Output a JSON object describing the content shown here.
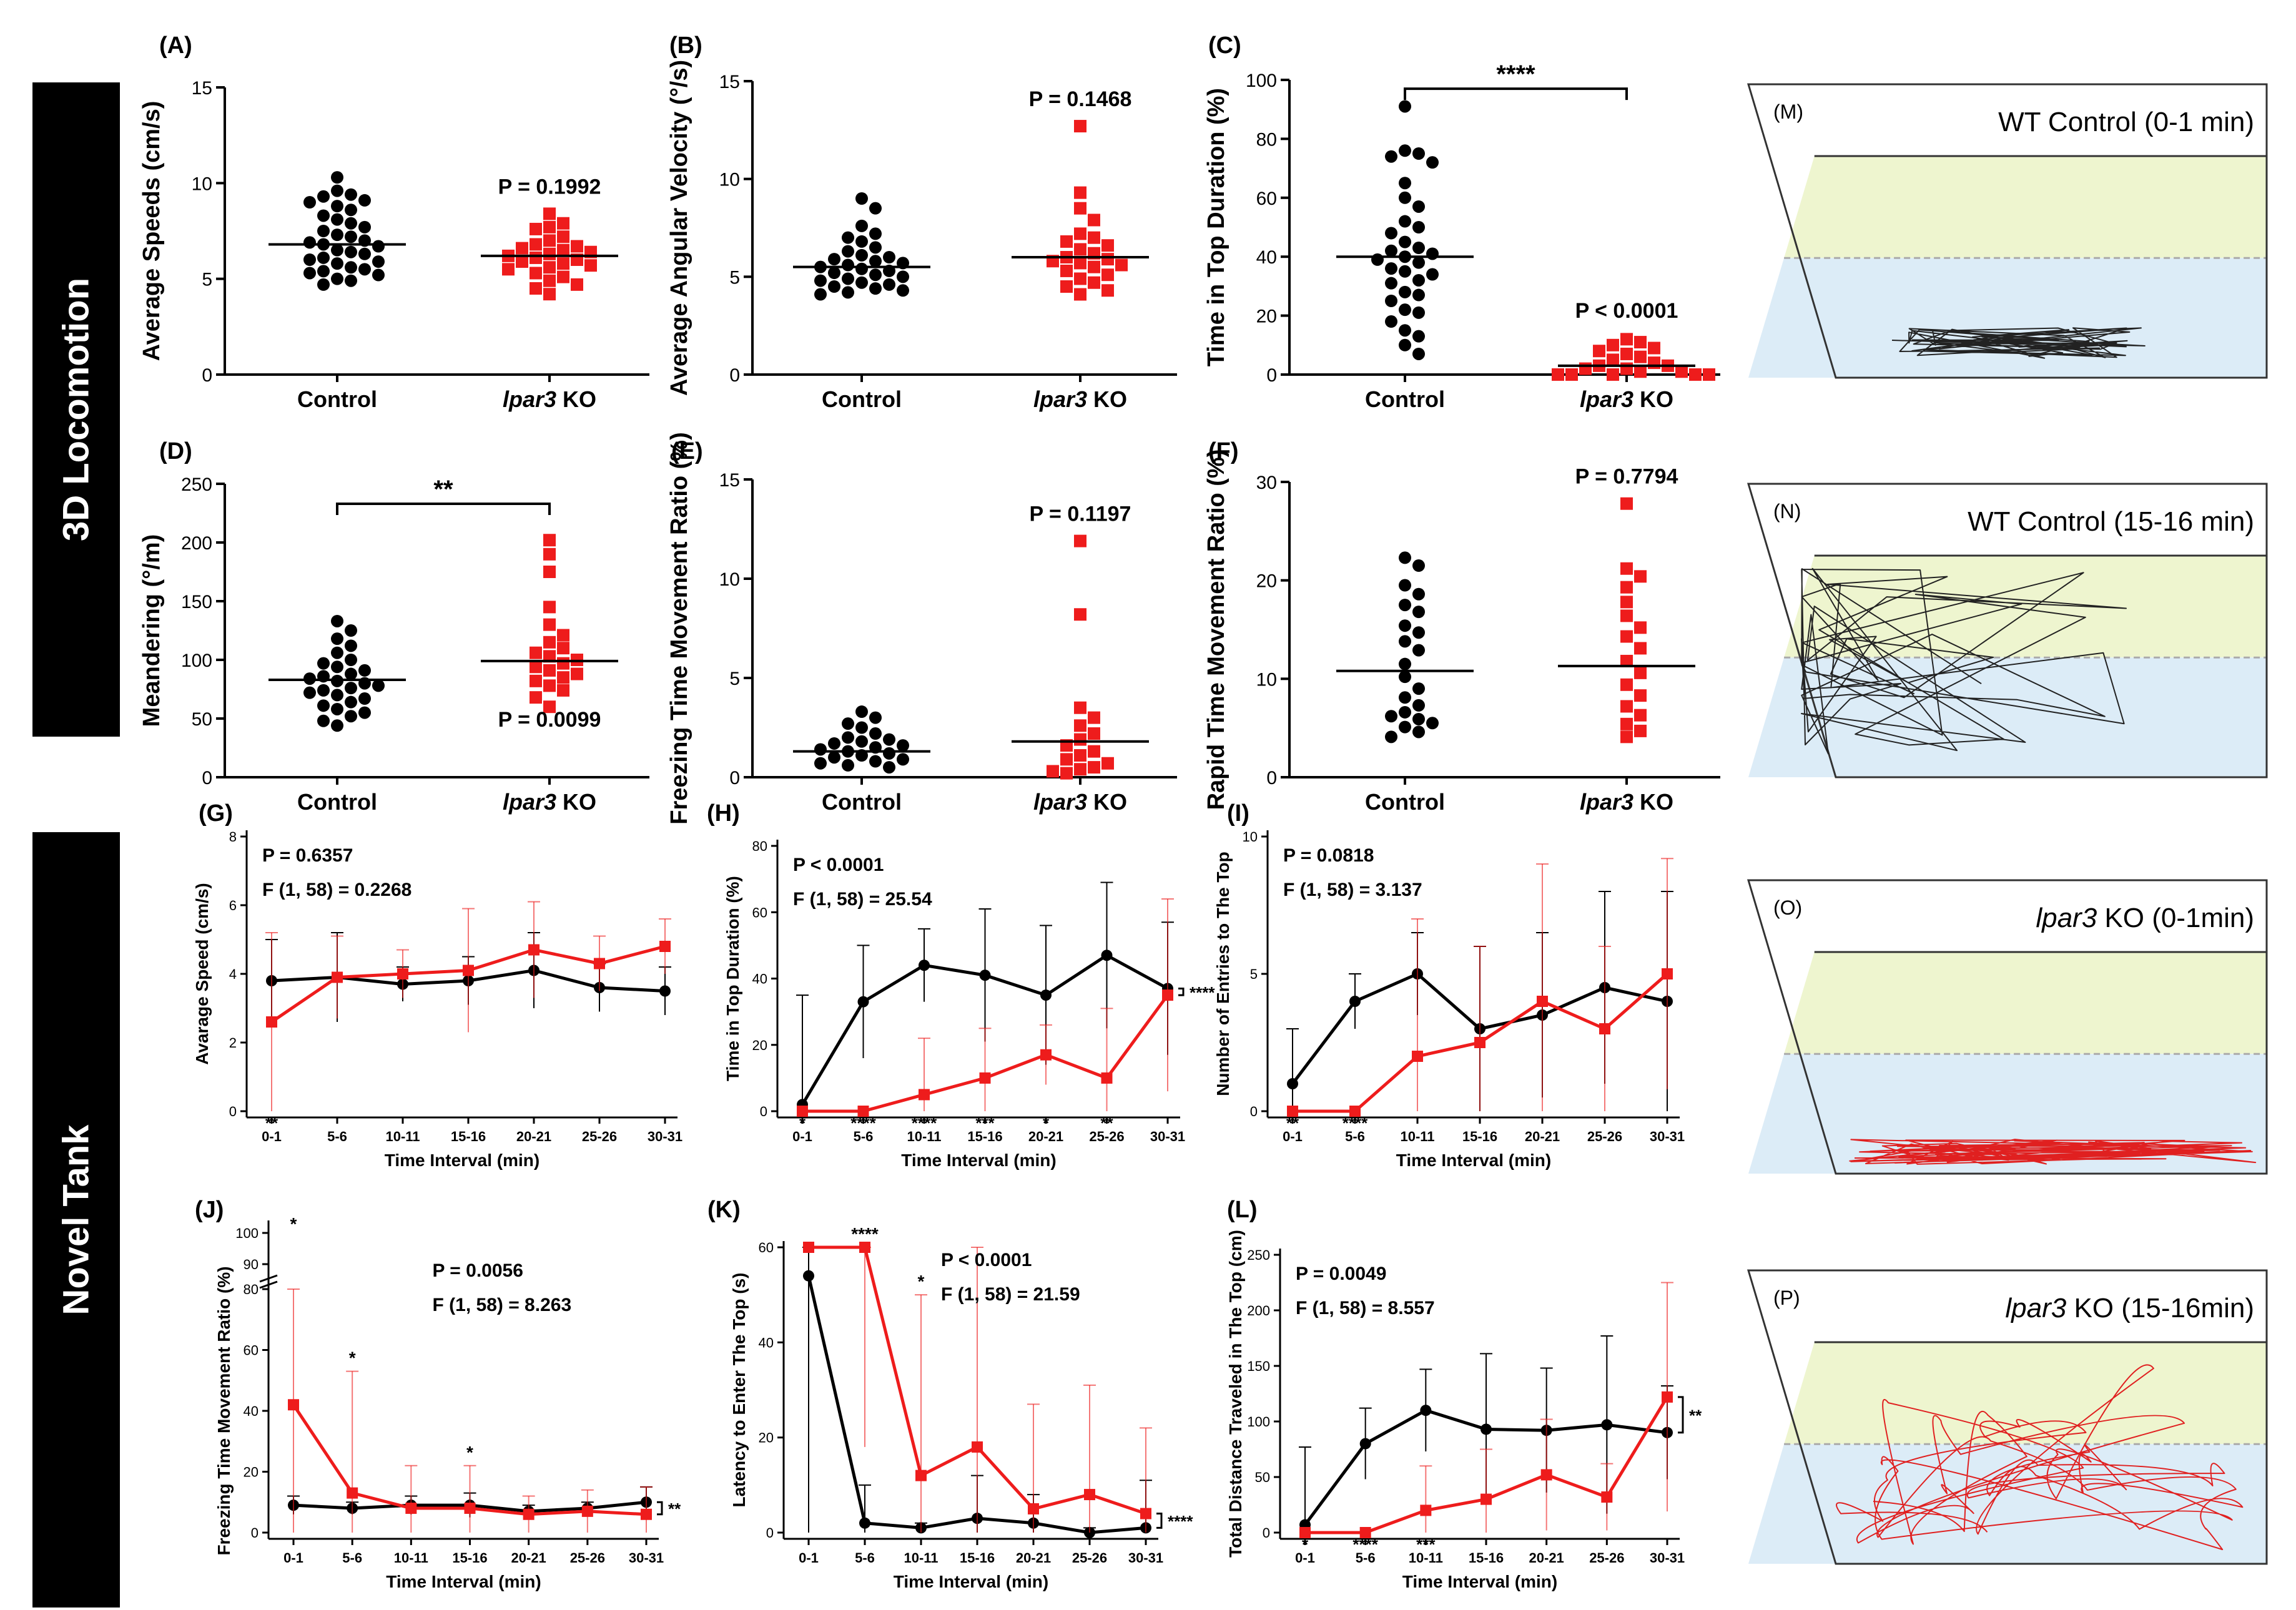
{
  "side_labels": {
    "locomotion": "3D Locomotion",
    "novel_tank": "Novel Tank"
  },
  "colors": {
    "control": "#000000",
    "ko": "#ee1c1c",
    "top_zone": "#eef5cf",
    "bottom_zone": "#dcecf7"
  },
  "chart_data": [
    {
      "id": "A",
      "type": "scatter",
      "panel": "(A)",
      "ylabel": "Average Speeds (cm/s)",
      "ylim": [
        0,
        15
      ],
      "yticks": [
        0,
        5,
        10,
        15
      ],
      "categories": [
        "Control",
        "lpar3 KO"
      ],
      "means": [
        6.8,
        6.2
      ],
      "pval": "P = 0.1992",
      "pval_group": 1,
      "values": [
        [
          10.3,
          9.6,
          9.4,
          9.3,
          9.1,
          9.0,
          8.8,
          8.6,
          8.3,
          8.1,
          7.9,
          7.7,
          7.5,
          7.3,
          7.2,
          7.0,
          6.9,
          6.8,
          6.7,
          6.5,
          6.4,
          6.3,
          6.1,
          6.0,
          5.9,
          5.8,
          5.6,
          5.5,
          5.4,
          5.3,
          5.2,
          5.0,
          4.9,
          4.7
        ],
        [
          8.4,
          7.9,
          7.7,
          7.6,
          7.2,
          7.0,
          6.8,
          6.7,
          6.6,
          6.5,
          6.4,
          6.3,
          6.2,
          6.1,
          6.0,
          5.9,
          5.8,
          5.7,
          5.6,
          5.5,
          5.3,
          5.1,
          4.9,
          4.7,
          4.5,
          4.2
        ]
      ]
    },
    {
      "id": "B",
      "type": "scatter",
      "panel": "(B)",
      "ylabel": "Average Angular Velocity (°/s)",
      "ylim": [
        0,
        15
      ],
      "yticks": [
        0,
        5,
        10,
        15
      ],
      "categories": [
        "Control",
        "lpar3 KO"
      ],
      "means": [
        5.5,
        6.0
      ],
      "pval": "P = 0.1468",
      "pval_group": 1,
      "values": [
        [
          9.0,
          8.5,
          7.6,
          7.2,
          7.0,
          6.8,
          6.5,
          6.3,
          6.1,
          6.0,
          5.9,
          5.8,
          5.7,
          5.6,
          5.5,
          5.4,
          5.3,
          5.2,
          5.1,
          5.0,
          4.9,
          4.8,
          4.7,
          4.6,
          4.5,
          4.4,
          4.3,
          4.2,
          4.1
        ],
        [
          12.7,
          9.3,
          8.5,
          7.9,
          7.2,
          7.0,
          6.8,
          6.6,
          6.4,
          6.2,
          6.0,
          5.9,
          5.8,
          5.7,
          5.6,
          5.5,
          5.3,
          5.1,
          4.9,
          4.7,
          4.5,
          4.3,
          4.1
        ]
      ]
    },
    {
      "id": "C",
      "type": "scatter",
      "panel": "(C)",
      "ylabel": "Time in Top Duration (%)",
      "ylim": [
        0,
        100
      ],
      "yticks": [
        0,
        20,
        40,
        60,
        80,
        100
      ],
      "categories": [
        "Control",
        "lpar3 KO"
      ],
      "means": [
        40,
        3
      ],
      "pval": "P < 0.0001",
      "pval_group": 1,
      "sig": "****",
      "values": [
        [
          91,
          76,
          75,
          74,
          72,
          65,
          60,
          57,
          52,
          50,
          48,
          45,
          43,
          42,
          41,
          40,
          39,
          38,
          36,
          35,
          34,
          32,
          31,
          28,
          27,
          25,
          22,
          21,
          18,
          15,
          13,
          10,
          7
        ],
        [
          12,
          11,
          10,
          9,
          8,
          7,
          6,
          5,
          4,
          3,
          3,
          2,
          2,
          1,
          1,
          0,
          0,
          0,
          0,
          0
        ]
      ]
    },
    {
      "id": "D",
      "type": "scatter",
      "panel": "(D)",
      "ylabel": "Meandering (°/m)",
      "ylim": [
        0,
        250
      ],
      "yticks": [
        0,
        50,
        100,
        150,
        200,
        250
      ],
      "categories": [
        "Control",
        "lpar3 KO"
      ],
      "means": [
        83,
        99
      ],
      "pval": "P = 0.0099",
      "pval_group": 1,
      "pval_pos": "below",
      "sig": "**",
      "values": [
        [
          133,
          125,
          118,
          112,
          106,
          100,
          97,
          94,
          91,
          88,
          86,
          84,
          82,
          80,
          78,
          76,
          74,
          72,
          70,
          67,
          64,
          61,
          58,
          55,
          52,
          48,
          44
        ],
        [
          202,
          190,
          175,
          145,
          130,
          121,
          115,
          110,
          106,
          103,
          100,
          97,
          94,
          91,
          88,
          85,
          82,
          78,
          74,
          68,
          60
        ]
      ]
    },
    {
      "id": "E",
      "type": "scatter",
      "panel": "(E)",
      "ylabel": "Freezing Time Movement Ratio (%)",
      "ylim": [
        0,
        15
      ],
      "yticks": [
        0,
        5,
        10,
        15
      ],
      "categories": [
        "Control",
        "lpar3 KO"
      ],
      "means": [
        1.3,
        1.8
      ],
      "pval": "P = 0.1197",
      "pval_group": 1,
      "values": [
        [
          3.3,
          3.0,
          2.7,
          2.5,
          2.2,
          2.0,
          1.9,
          1.8,
          1.7,
          1.6,
          1.5,
          1.4,
          1.3,
          1.2,
          1.1,
          1.0,
          0.9,
          0.8,
          0.7,
          0.6,
          0.5
        ],
        [
          11.9,
          8.2,
          3.5,
          3.0,
          2.6,
          2.2,
          1.9,
          1.6,
          1.3,
          1.1,
          0.9,
          0.7,
          0.5,
          0.4,
          0.3,
          0.2
        ]
      ]
    },
    {
      "id": "F",
      "type": "scatter",
      "panel": "(F)",
      "ylabel": "Rapid Time Movement Ratio (%)",
      "ylim": [
        0,
        30
      ],
      "yticks": [
        0,
        10,
        20,
        30
      ],
      "categories": [
        "Control",
        "lpar3 KO"
      ],
      "means": [
        10.8,
        11.3
      ],
      "pval": "P = 0.7794",
      "pval_group": 1,
      "values": [
        [
          22.3,
          21.5,
          19.5,
          18.6,
          17.5,
          16.8,
          15.4,
          14.7,
          13.8,
          12.9,
          11.5,
          10.2,
          9.0,
          8.1,
          7.3,
          6.6,
          6.2,
          5.9,
          5.5,
          5.1,
          4.6,
          4.1
        ],
        [
          27.8,
          21.2,
          20.4,
          19.3,
          17.8,
          16.4,
          15.2,
          14.3,
          13.1,
          11.8,
          10.6,
          9.4,
          8.3,
          7.2,
          6.3,
          5.4,
          4.7,
          4.1
        ]
      ]
    },
    {
      "id": "G",
      "type": "line",
      "panel": "(G)",
      "ylabel": "Avarage Speed (cm/s)",
      "xlabel": "Time Interval (min)",
      "ylim": [
        0,
        8
      ],
      "yticks": [
        0,
        2,
        4,
        6,
        8
      ],
      "categories": [
        "0-1",
        "5-6",
        "10-11",
        "15-16",
        "20-21",
        "25-26",
        "30-31"
      ],
      "series": [
        {
          "name": "Control",
          "values": [
            3.8,
            3.9,
            3.7,
            3.8,
            4.1,
            3.6,
            3.5
          ],
          "err": [
            1.2,
            1.3,
            0.5,
            0.7,
            1.1,
            0.7,
            0.7
          ]
        },
        {
          "name": "lpar3 KO",
          "values": [
            2.6,
            3.9,
            4.0,
            4.1,
            4.7,
            4.3,
            4.8
          ],
          "err": [
            2.6,
            1.2,
            0.7,
            1.8,
            1.4,
            0.8,
            0.8
          ]
        }
      ],
      "stats": [
        "P = 0.6357",
        "F (1, 58) = 0.2268"
      ],
      "ann_below": [
        "**",
        "",
        "",
        "",
        "",
        "",
        ""
      ],
      "side_sig": ""
    },
    {
      "id": "H",
      "type": "line",
      "panel": "(H)",
      "ylabel": "Time in Top Duration (%)",
      "xlabel": "Time Interval (min)",
      "ylim": [
        0,
        80
      ],
      "yticks": [
        0,
        20,
        40,
        60,
        80
      ],
      "categories": [
        "0-1",
        "5-6",
        "10-11",
        "15-16",
        "20-21",
        "25-26",
        "30-31"
      ],
      "series": [
        {
          "name": "Control",
          "values": [
            2,
            33,
            44,
            41,
            35,
            47,
            37
          ],
          "err": [
            33,
            17,
            11,
            20,
            21,
            22,
            20
          ]
        },
        {
          "name": "lpar3 KO",
          "values": [
            0,
            0,
            5,
            10,
            17,
            10,
            35
          ],
          "err": [
            0,
            0,
            17,
            15,
            9,
            21,
            29
          ]
        }
      ],
      "stats": [
        "P < 0.0001",
        "F (1, 58) = 25.54"
      ],
      "ann_below": [
        "*",
        "****",
        "****",
        "***",
        "*",
        "**",
        ""
      ],
      "side_sig": "****"
    },
    {
      "id": "I",
      "type": "line",
      "panel": "(I)",
      "ylabel": "Number of Entries to The Top",
      "xlabel": "Time Interval (min)",
      "ylim": [
        0,
        10
      ],
      "yticks": [
        0,
        5,
        10
      ],
      "categories": [
        "0-1",
        "5-6",
        "10-11",
        "15-16",
        "20-21",
        "25-26",
        "30-31"
      ],
      "series": [
        {
          "name": "Control",
          "values": [
            1,
            4,
            5,
            3,
            3.5,
            4.5,
            4
          ],
          "err": [
            2,
            1,
            1.5,
            3,
            3,
            3.5,
            4
          ]
        },
        {
          "name": "lpar3 KO",
          "values": [
            0,
            0,
            2,
            2.5,
            4,
            3,
            5
          ],
          "err": [
            0,
            0,
            5,
            3.5,
            5,
            3,
            4.2
          ]
        }
      ],
      "stats": [
        "P = 0.0818",
        "F (1, 58) = 3.137"
      ],
      "ann_below": [
        "**",
        "****",
        "",
        "",
        "",
        "",
        ""
      ],
      "side_sig": ""
    },
    {
      "id": "J",
      "type": "line",
      "panel": "(J)",
      "ylabel": "Freezing Time Movement Ratio (%)",
      "xlabel": "Time Interval (min)",
      "ylim": [
        0,
        80
      ],
      "yticks": [
        0,
        20,
        40,
        60,
        80
      ],
      "extra_ticks": [
        "90",
        "100"
      ],
      "categories": [
        "0-1",
        "5-6",
        "10-11",
        "15-16",
        "20-21",
        "25-26",
        "30-31"
      ],
      "series": [
        {
          "name": "Control",
          "values": [
            9,
            8,
            9,
            9,
            7,
            8,
            10
          ],
          "err": [
            3,
            2,
            3,
            4,
            2,
            2,
            5
          ]
        },
        {
          "name": "lpar3 KO",
          "values": [
            42,
            13,
            8,
            8,
            6,
            7,
            6
          ],
          "err": [
            48,
            40,
            14,
            14,
            6,
            7,
            9
          ]
        }
      ],
      "stats": [
        "P = 0.0056",
        "F (1, 58) = 8.263"
      ],
      "ann_above": [
        "*",
        "*",
        "",
        "*",
        "",
        "",
        ""
      ],
      "side_sig": "**"
    },
    {
      "id": "K",
      "type": "line",
      "panel": "(K)",
      "ylabel": "Latency to Enter The Top (s)",
      "xlabel": "Time Interval (min)",
      "ylim": [
        0,
        60
      ],
      "yticks": [
        0,
        20,
        40,
        60
      ],
      "categories": [
        "0-1",
        "5-6",
        "10-11",
        "15-16",
        "20-21",
        "25-26",
        "30-31"
      ],
      "series": [
        {
          "name": "Control",
          "values": [
            54,
            2,
            1,
            3,
            2,
            0,
            1
          ],
          "err": [
            54,
            8,
            1,
            9,
            6,
            1,
            10
          ]
        },
        {
          "name": "lpar3 KO",
          "values": [
            60,
            60,
            12,
            18,
            5,
            8,
            4
          ],
          "err": [
            0,
            42,
            38,
            42,
            22,
            23,
            18
          ]
        }
      ],
      "stats": [
        "P < 0.0001",
        "F (1, 58) = 21.59"
      ],
      "ann_above": [
        "",
        "****",
        "*",
        "",
        "",
        "",
        ""
      ],
      "side_sig": "****"
    },
    {
      "id": "L",
      "type": "line",
      "panel": "(L)",
      "ylabel": "Total Distance Traveled in The Top (cm)",
      "xlabel": "Time Interval (min)",
      "ylim": [
        0,
        250
      ],
      "yticks": [
        0,
        50,
        100,
        150,
        200,
        250
      ],
      "categories": [
        "0-1",
        "5-6",
        "10-11",
        "15-16",
        "20-21",
        "25-26",
        "30-31"
      ],
      "series": [
        {
          "name": "Control",
          "values": [
            7,
            80,
            110,
            93,
            92,
            97,
            90
          ],
          "err": [
            70,
            32,
            37,
            68,
            56,
            80,
            42
          ]
        },
        {
          "name": "lpar3 KO",
          "values": [
            0,
            0,
            20,
            30,
            52,
            32,
            122
          ],
          "err": [
            0,
            0,
            40,
            45,
            50,
            30,
            103
          ]
        }
      ],
      "stats": [
        "P = 0.0049",
        "F (1, 58) = 8.557"
      ],
      "ann_below": [
        "*",
        "****",
        "***",
        "",
        "",
        "",
        ""
      ],
      "side_sig": "**"
    }
  ],
  "tracks": [
    {
      "id": "M",
      "label": "(M)",
      "title": "WT Control (0-1 min)",
      "color": "black"
    },
    {
      "id": "N",
      "label": "(N)",
      "title": "WT Control (15-16 min)",
      "color": "black"
    },
    {
      "id": "O",
      "label": "(O)",
      "title_prefix": "lpar3",
      "title_suffix": " KO (0-1min)",
      "color": "red"
    },
    {
      "id": "P",
      "label": "(P)",
      "title_prefix": "lpar3",
      "title_suffix": " KO (15-16min)",
      "color": "red"
    }
  ]
}
